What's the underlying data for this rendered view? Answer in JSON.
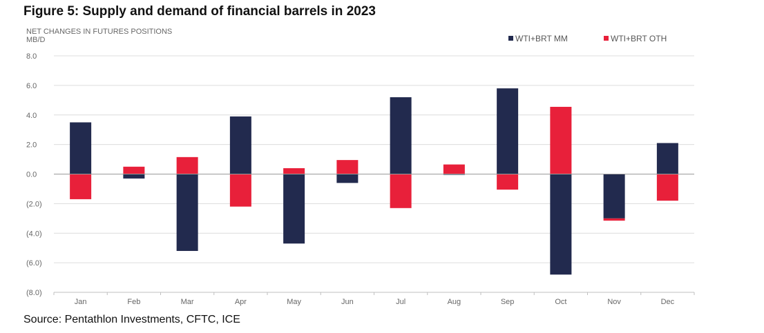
{
  "title": "Figure 5: Supply and demand of financial barrels in 2023",
  "source": "Source: Pentathlon Investments, CFTC, ICE",
  "colors": {
    "mm": "#222a4e",
    "oth": "#e8203a",
    "grid": "#dcdcdc",
    "zero": "#999999"
  },
  "chart_data": {
    "type": "bar",
    "stacked": true,
    "ylabel_line1": "NET CHANGES IN FUTURES POSITIONS",
    "ylabel_line2": "MB/D",
    "ylim": [
      -8,
      8
    ],
    "yticks": [
      8,
      6,
      4,
      2,
      0,
      -2,
      -4,
      -6,
      -8
    ],
    "ytick_labels": [
      "8.0",
      "6.0",
      "4.0",
      "2.0",
      "0.0",
      "(2.0)",
      "(4.0)",
      "(6.0)",
      "(8.0)"
    ],
    "categories": [
      "Jan",
      "Feb",
      "Mar",
      "Apr",
      "May",
      "Jun",
      "Jul",
      "Aug",
      "Sep",
      "Oct",
      "Nov",
      "Dec"
    ],
    "legend_position": "top-right",
    "series": [
      {
        "name": "WTI+BRT MM",
        "values": [
          3.5,
          -0.3,
          -5.2,
          3.9,
          -4.7,
          -0.6,
          5.2,
          -0.05,
          5.8,
          -6.8,
          -3.0,
          2.1
        ]
      },
      {
        "name": "WTI+BRT OTH",
        "values": [
          -1.7,
          0.5,
          1.15,
          -2.2,
          0.4,
          0.95,
          -2.3,
          0.65,
          -1.05,
          4.55,
          -0.15,
          -1.8
        ]
      }
    ]
  }
}
